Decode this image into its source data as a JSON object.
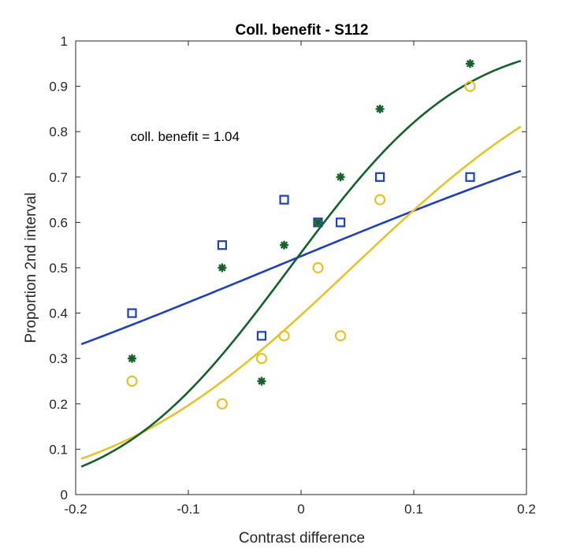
{
  "chart_data": {
    "type": "scatter",
    "title": "Coll. benefit - S112",
    "xlabel": "Contrast difference",
    "ylabel": "Proportion 2nd interval",
    "xlim": [
      -0.2,
      0.2
    ],
    "ylim": [
      0,
      1
    ],
    "xticks": [
      -0.2,
      -0.1,
      0,
      0.1,
      0.2
    ],
    "xtick_labels": [
      "-0.2",
      "-0.1",
      "0",
      "0.1",
      "0.2"
    ],
    "yticks": [
      0,
      0.1,
      0.2,
      0.3,
      0.4,
      0.5,
      0.6,
      0.7,
      0.8,
      0.9,
      1
    ],
    "ytick_labels": [
      "0",
      "0.1",
      "0.2",
      "0.3",
      "0.4",
      "0.5",
      "0.6",
      "0.7",
      "0.8",
      "0.9",
      "1"
    ],
    "grid": false,
    "legend": "none",
    "annotation": "coll. benefit = 1.04",
    "annotation_pos": {
      "x": -0.15,
      "y": 0.79
    },
    "series": [
      {
        "marker": "square",
        "color": "#1f3fbf",
        "x": [
          -0.15,
          -0.07,
          -0.035,
          -0.015,
          0.015,
          0.035,
          0.07,
          0.15
        ],
        "y": [
          0.4,
          0.55,
          0.35,
          0.65,
          0.6,
          0.6,
          0.7,
          0.7
        ],
        "fit": {
          "mu": -0.025,
          "sigma": 0.39
        }
      },
      {
        "marker": "circle",
        "color": "#e6c32b",
        "x": [
          -0.15,
          -0.07,
          -0.035,
          -0.015,
          0.015,
          0.035,
          0.07,
          0.15
        ],
        "y": [
          0.25,
          0.2,
          0.3,
          0.35,
          0.5,
          0.35,
          0.65,
          0.9
        ],
        "fit": {
          "mu": 0.045,
          "sigma": 0.17
        }
      },
      {
        "marker": "asterisk",
        "color": "#14612a",
        "x": [
          -0.15,
          -0.07,
          -0.035,
          -0.015,
          0.015,
          0.035,
          0.07,
          0.15
        ],
        "y": [
          0.3,
          0.5,
          0.25,
          0.55,
          0.6,
          0.7,
          0.85,
          0.95
        ],
        "fit": {
          "mu": -0.01,
          "sigma": 0.12
        }
      }
    ]
  }
}
